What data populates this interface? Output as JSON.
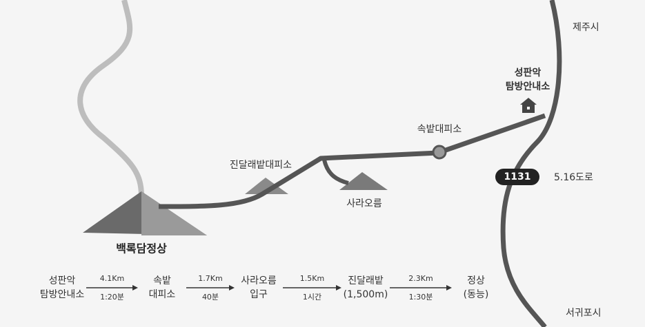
{
  "places": {
    "jeju_city": "제주시",
    "seongpanak": [
      "성판악",
      "탐방안내소"
    ],
    "sokbat_shelter": "속밭대피소",
    "jindallaebat_shelter": "진달래밭대피소",
    "saraoreum": "사라오름",
    "summit": "백록담정상",
    "road_number": "1131",
    "road_name": "5.16도로",
    "seogwipo_city": "서귀포시"
  },
  "route": {
    "stops": [
      [
        "성판악",
        "탐방안내소"
      ],
      [
        "속밭",
        "대피소"
      ],
      [
        "사라오름",
        "입구"
      ],
      [
        "진달래밭",
        "(1,500m)"
      ],
      [
        "정상",
        "(동능)"
      ]
    ],
    "legs": [
      {
        "distance": "4.1Km",
        "time": "1:20분"
      },
      {
        "distance": "1.7Km",
        "time": "40분"
      },
      {
        "distance": "1.5Km",
        "time": "1시간"
      },
      {
        "distance": "2.3Km",
        "time": "1:30분"
      }
    ]
  }
}
